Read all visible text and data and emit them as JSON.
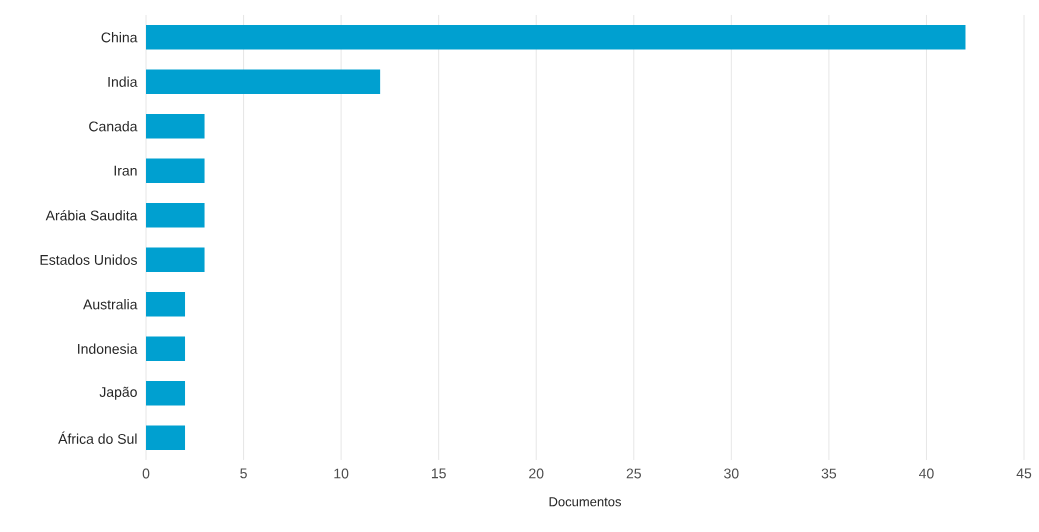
{
  "chart_data": {
    "type": "bar",
    "orientation": "horizontal",
    "xlabel": "Documentos",
    "categories": [
      "China",
      "India",
      "Canada",
      "Iran",
      "Arábia Saudita",
      "Estados Unidos",
      "Australia",
      "Indonesia",
      "Japão",
      "África do Sul"
    ],
    "values": [
      42,
      12,
      3,
      3,
      3,
      3,
      2,
      2,
      2,
      2
    ],
    "color": "#00a0d0",
    "xlim": [
      0,
      45
    ],
    "xticks": [
      0,
      5,
      10,
      15,
      20,
      25,
      30,
      35,
      40,
      45
    ],
    "grid": "x"
  }
}
